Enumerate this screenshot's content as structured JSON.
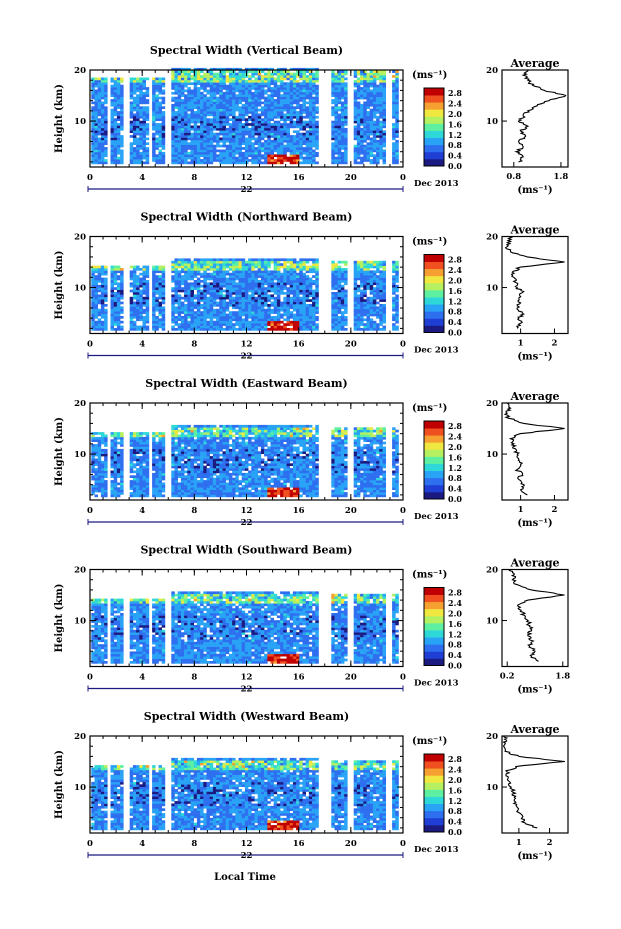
{
  "shared": {
    "colorbar_unit": "(ms⁻¹)",
    "colorbar_ticks": [
      "0.0",
      "0.4",
      "0.8",
      "1.2",
      "1.6",
      "2.0",
      "2.4",
      "2.8"
    ],
    "colorbar_range": [
      0,
      3.0
    ],
    "colormap": [
      "#1a1a80",
      "#1f3fd4",
      "#2e6ff0",
      "#29a3f5",
      "#2fd8d8",
      "#5cf0a0",
      "#b5f060",
      "#f0e840",
      "#f5a030",
      "#f05020",
      "#c00000"
    ],
    "time_ticks": [
      "0",
      "4",
      "8",
      "12",
      "16",
      "20",
      "0"
    ],
    "time_range_hours": [
      0,
      24
    ],
    "height_ticks": [
      "20",
      "10"
    ],
    "height_range_km": [
      1,
      20
    ],
    "day_label": "22",
    "month_label": "Dec 2013",
    "ylabel": "Height (km)",
    "xlabel": "Local Time",
    "average_title": "Average",
    "average_xunit": "(ms⁻¹)",
    "average_height_ticks": [
      "20",
      "10"
    ]
  },
  "chart_data": [
    {
      "type": "heatmap",
      "title": "Spectral Width (Vertical Beam)",
      "x_hours": [
        0,
        24
      ],
      "y_km": [
        1,
        20
      ],
      "data_gaps_hours": [
        [
          1.1,
          1.5
        ],
        [
          2.4,
          3.0
        ],
        [
          4.3,
          4.6
        ],
        [
          5.5,
          6.0
        ],
        [
          17.5,
          18.5
        ],
        [
          19.5,
          20.0
        ],
        [
          22.5,
          23.0
        ],
        [
          23.6,
          24.0
        ]
      ],
      "data_top_km": 20,
      "unit": "ms⁻¹",
      "average": {
        "x_ticks": [
          "0.8",
          "1.8"
        ],
        "x_range": [
          0.55,
          1.95
        ],
        "profile": [
          [
            0.9,
            2
          ],
          [
            1.0,
            3
          ],
          [
            0.85,
            4
          ],
          [
            1.0,
            5
          ],
          [
            0.9,
            6
          ],
          [
            1.05,
            7
          ],
          [
            0.95,
            8
          ],
          [
            1.1,
            9
          ],
          [
            0.9,
            10
          ],
          [
            1.0,
            11
          ],
          [
            1.1,
            12
          ],
          [
            1.3,
            13
          ],
          [
            1.55,
            14
          ],
          [
            1.9,
            15
          ],
          [
            1.45,
            16
          ],
          [
            1.2,
            17
          ],
          [
            1.1,
            18
          ],
          [
            1.0,
            19
          ],
          [
            1.1,
            20
          ]
        ]
      }
    },
    {
      "type": "heatmap",
      "title": "Spectral Width (Northward Beam)",
      "x_hours": [
        0,
        24
      ],
      "y_km": [
        1,
        20
      ],
      "data_gaps_hours": [
        [
          1.1,
          1.5
        ],
        [
          2.4,
          3.0
        ],
        [
          4.3,
          4.6
        ],
        [
          5.5,
          6.0
        ],
        [
          17.5,
          18.5
        ],
        [
          19.5,
          20.0
        ],
        [
          22.5,
          23.0
        ],
        [
          23.6,
          24.0
        ]
      ],
      "data_top_km": 15.5,
      "unit": "ms⁻¹",
      "average": {
        "x_ticks": [
          "1",
          "2"
        ],
        "x_range": [
          0.45,
          2.4
        ],
        "profile": [
          [
            0.9,
            2
          ],
          [
            1.0,
            3
          ],
          [
            0.95,
            4
          ],
          [
            1.05,
            5
          ],
          [
            0.9,
            6
          ],
          [
            1.0,
            7
          ],
          [
            0.95,
            8
          ],
          [
            1.05,
            9
          ],
          [
            0.9,
            10
          ],
          [
            0.85,
            11
          ],
          [
            0.8,
            12
          ],
          [
            0.75,
            13
          ],
          [
            1.0,
            14
          ],
          [
            2.3,
            15
          ],
          [
            1.2,
            16
          ],
          [
            0.7,
            17
          ],
          [
            0.6,
            18
          ],
          [
            0.7,
            19
          ],
          [
            0.65,
            20
          ]
        ]
      }
    },
    {
      "type": "heatmap",
      "title": "Spectral Width (Eastward Beam)",
      "x_hours": [
        0,
        24
      ],
      "y_km": [
        1,
        20
      ],
      "data_gaps_hours": [
        [
          1.1,
          1.5
        ],
        [
          2.4,
          3.0
        ],
        [
          4.3,
          4.6
        ],
        [
          5.5,
          6.0
        ],
        [
          17.5,
          18.5
        ],
        [
          19.5,
          20.0
        ],
        [
          22.5,
          23.0
        ],
        [
          23.6,
          24.0
        ]
      ],
      "data_top_km": 15.5,
      "unit": "ms⁻¹",
      "average": {
        "x_ticks": [
          "1",
          "2"
        ],
        "x_range": [
          0.45,
          2.4
        ],
        "profile": [
          [
            1.2,
            2
          ],
          [
            1.0,
            3
          ],
          [
            1.1,
            4
          ],
          [
            0.95,
            5
          ],
          [
            1.05,
            6
          ],
          [
            0.9,
            7
          ],
          [
            1.0,
            8
          ],
          [
            0.95,
            9
          ],
          [
            0.9,
            10
          ],
          [
            0.85,
            11
          ],
          [
            0.8,
            12
          ],
          [
            0.7,
            13
          ],
          [
            1.0,
            14
          ],
          [
            2.3,
            15
          ],
          [
            1.1,
            16
          ],
          [
            0.65,
            17
          ],
          [
            0.6,
            18
          ],
          [
            0.7,
            19
          ],
          [
            0.6,
            20
          ]
        ]
      }
    },
    {
      "type": "heatmap",
      "title": "Spectral Width (Southward Beam)",
      "x_hours": [
        0,
        24
      ],
      "y_km": [
        1,
        20
      ],
      "data_gaps_hours": [
        [
          1.1,
          1.5
        ],
        [
          2.4,
          3.0
        ],
        [
          4.3,
          4.6
        ],
        [
          5.5,
          6.0
        ],
        [
          17.5,
          18.5
        ],
        [
          19.5,
          20.0
        ],
        [
          22.5,
          23.0
        ],
        [
          23.6,
          24.0
        ]
      ],
      "data_top_km": 15.5,
      "unit": "ms⁻¹",
      "average": {
        "x_ticks": [
          "0.2",
          "1.8"
        ],
        "x_range": [
          0.05,
          1.95
        ],
        "profile": [
          [
            1.1,
            2
          ],
          [
            0.9,
            3
          ],
          [
            1.0,
            4
          ],
          [
            0.85,
            5
          ],
          [
            0.95,
            6
          ],
          [
            0.8,
            7
          ],
          [
            0.9,
            8
          ],
          [
            0.85,
            9
          ],
          [
            0.8,
            10
          ],
          [
            0.7,
            11
          ],
          [
            0.6,
            12
          ],
          [
            0.5,
            13
          ],
          [
            0.8,
            14
          ],
          [
            1.85,
            15
          ],
          [
            0.9,
            16
          ],
          [
            0.5,
            17
          ],
          [
            0.35,
            18
          ],
          [
            0.4,
            19
          ],
          [
            0.3,
            20
          ]
        ]
      }
    },
    {
      "type": "heatmap",
      "title": "Spectral Width (Westward Beam)",
      "x_hours": [
        0,
        24
      ],
      "y_km": [
        1,
        20
      ],
      "data_gaps_hours": [
        [
          1.1,
          1.5
        ],
        [
          2.4,
          3.0
        ],
        [
          4.3,
          4.6
        ],
        [
          5.5,
          6.0
        ],
        [
          17.5,
          18.5
        ],
        [
          19.5,
          20.0
        ],
        [
          22.5,
          23.0
        ],
        [
          23.6,
          24.0
        ]
      ],
      "data_top_km": 15.5,
      "unit": "ms⁻¹",
      "average": {
        "x_ticks": [
          "1",
          "2"
        ],
        "x_range": [
          0.45,
          2.6
        ],
        "profile": [
          [
            1.6,
            2
          ],
          [
            1.2,
            3
          ],
          [
            1.1,
            4
          ],
          [
            1.0,
            5
          ],
          [
            0.95,
            6
          ],
          [
            0.9,
            7
          ],
          [
            0.85,
            8
          ],
          [
            0.8,
            9
          ],
          [
            0.75,
            10
          ],
          [
            0.7,
            11
          ],
          [
            0.65,
            12
          ],
          [
            0.6,
            13
          ],
          [
            0.9,
            14
          ],
          [
            2.5,
            15
          ],
          [
            1.0,
            16
          ],
          [
            0.55,
            17
          ],
          [
            0.5,
            18
          ],
          [
            0.6,
            19
          ],
          [
            0.5,
            20
          ]
        ]
      }
    }
  ]
}
